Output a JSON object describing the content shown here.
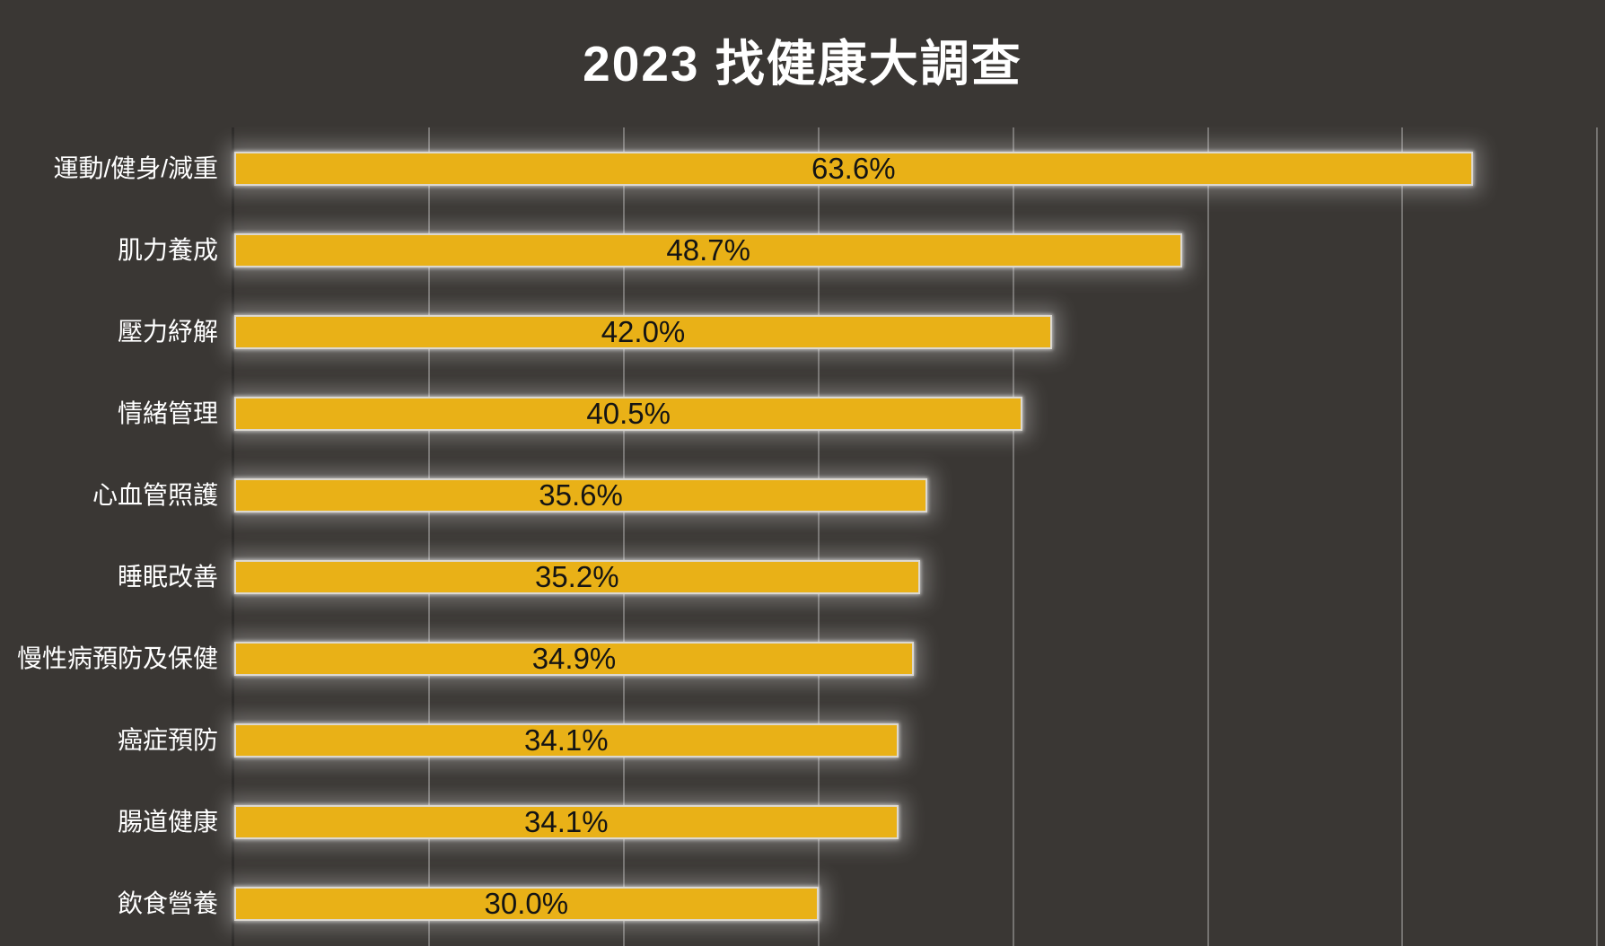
{
  "title": "2023 找健康大調查",
  "chart_data": {
    "type": "bar",
    "orientation": "horizontal",
    "title": "2023 找健康大調查",
    "categories": [
      "運動/健身/減重",
      "肌力養成",
      "壓力紓解",
      "情緒管理",
      "心血管照護",
      "睡眠改善",
      "慢性病預防及保健",
      "癌症預防",
      "腸道健康",
      "飲食營養"
    ],
    "values": [
      63.6,
      48.7,
      42.0,
      40.5,
      35.6,
      35.2,
      34.9,
      34.1,
      34.1,
      30.0
    ],
    "value_labels": [
      "63.6%",
      "48.7%",
      "42.0%",
      "40.5%",
      "35.6%",
      "35.2%",
      "34.9%",
      "34.1%",
      "34.1%",
      "30.0%"
    ],
    "xlabel": "",
    "ylabel": "",
    "xlim": [
      0,
      70.4
    ],
    "grid_interval": 10,
    "grid": true,
    "legend": false,
    "value_labels_position": "center-of-bar",
    "sorted_descending": true,
    "axis_tick_labels_visible": false
  },
  "colors": {
    "background": "#3A3734",
    "bar_fill": "#E9B117",
    "bar_edge": "#DCD8D0",
    "gridline": "rgba(255,255,255,0.30)",
    "axis_line": "#2B2927",
    "title_text": "#FFFFFF",
    "category_text": "#FFFFFF",
    "value_text": "#141414"
  }
}
